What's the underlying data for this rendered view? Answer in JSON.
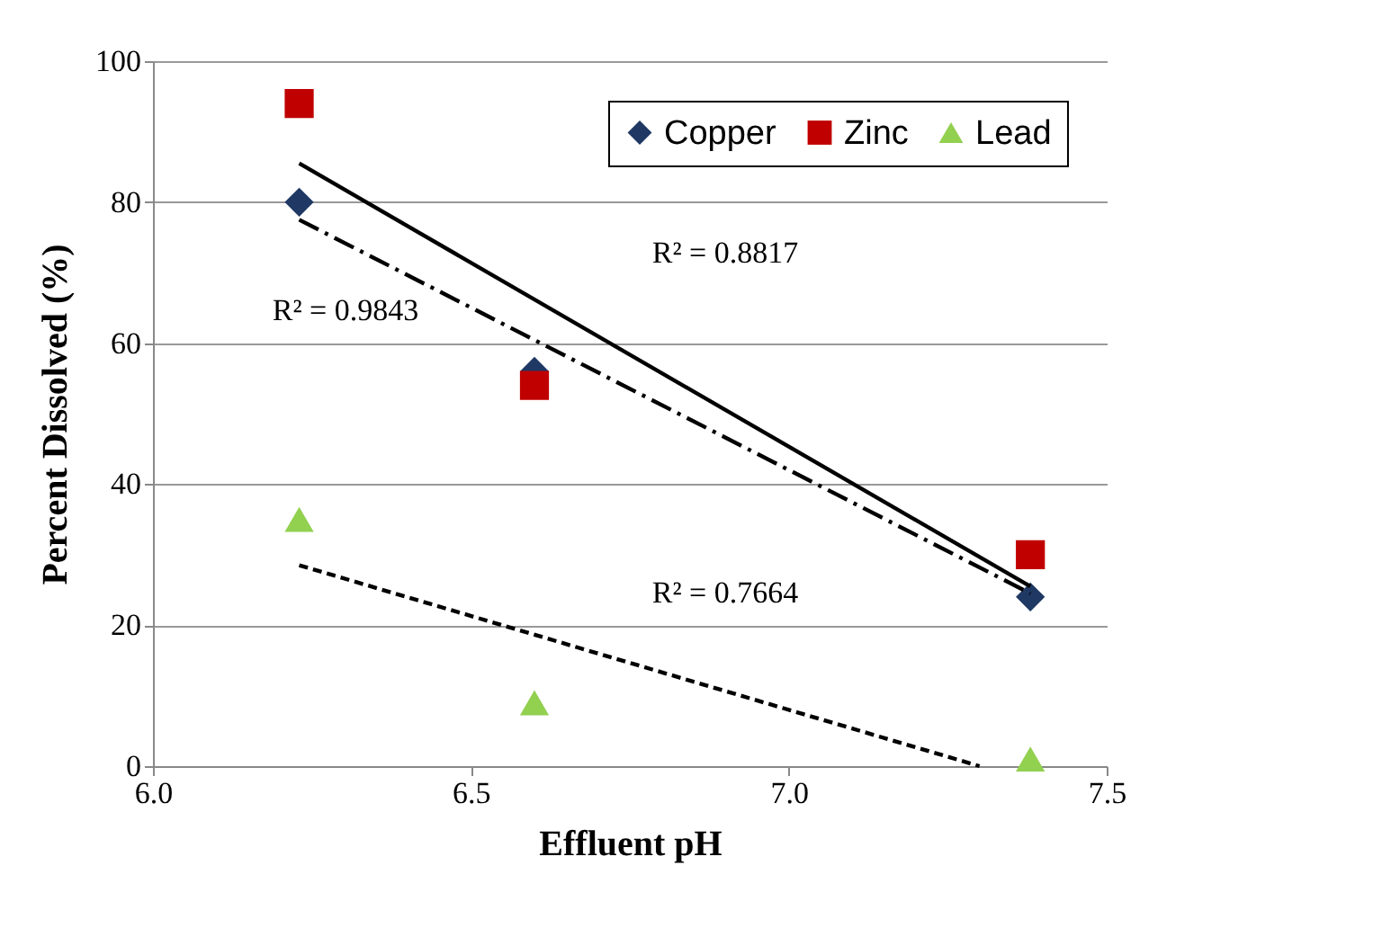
{
  "chart_data": {
    "type": "scatter",
    "xlabel": "Effluent pH",
    "ylabel": "Percent Dissolved (%)",
    "xlim": [
      6.0,
      7.5
    ],
    "xticks": [
      {
        "value": 6.0,
        "label": "6.0"
      },
      {
        "value": 6.5,
        "label": "6.5"
      },
      {
        "value": 7.0,
        "label": "7.0"
      },
      {
        "value": 7.5,
        "label": "7.5"
      }
    ],
    "ylim": [
      0,
      100
    ],
    "yticks": [
      0,
      20,
      40,
      60,
      80,
      100
    ],
    "grid": "y",
    "legend": "top right",
    "x": [
      6.23,
      6.6,
      7.38
    ],
    "series": [
      {
        "name": "Copper",
        "color": "#1f3864",
        "marker": "diamond",
        "values": [
          80,
          56,
          24
        ]
      },
      {
        "name": "Zinc",
        "color": "#c00000",
        "marker": "square",
        "values": [
          94,
          54,
          30
        ]
      },
      {
        "name": "Lead",
        "color": "#92d050",
        "marker": "triangle",
        "values": [
          35,
          9,
          1
        ]
      },
      {
        "type": "line",
        "color": "#000000",
        "line_style": "solid",
        "x": [
          6.23,
          7.38
        ],
        "values": [
          85.5,
          25.5
        ]
      },
      {
        "type": "line",
        "color": "#000000",
        "line_style": "dashdot",
        "x": [
          6.23,
          7.38
        ],
        "values": [
          77.5,
          24.5
        ]
      },
      {
        "type": "line",
        "color": "#000000",
        "line_style": "dashed",
        "x": [
          6.23,
          7.3
        ],
        "values": [
          28.5,
          0
        ]
      }
    ],
    "annotations": [
      "R² = 0.8817",
      "R² = 0.9843",
      "R² = 0.7664"
    ]
  }
}
